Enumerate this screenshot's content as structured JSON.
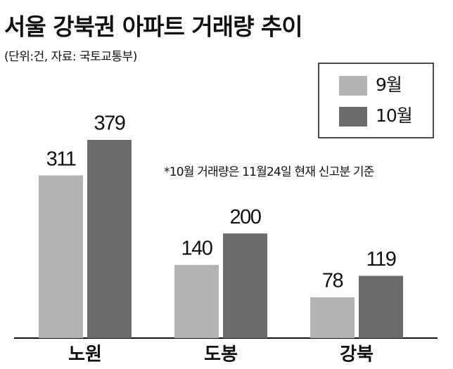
{
  "chart_data": {
    "type": "bar",
    "title": "서울 강북권 아파트 거래량 추이",
    "subtitle": "(단위:건, 자료: 국토교통부)",
    "note": "*10월 거래량은 11월24일 현재 신고분 기준",
    "categories": [
      "노원",
      "도봉",
      "강북"
    ],
    "series": [
      {
        "name": "9월",
        "color": "#b3b3b3",
        "values": [
          311,
          140,
          78
        ]
      },
      {
        "name": "10월",
        "color": "#6b6b6b",
        "values": [
          379,
          200,
          119
        ]
      }
    ],
    "legend": "upper right"
  }
}
